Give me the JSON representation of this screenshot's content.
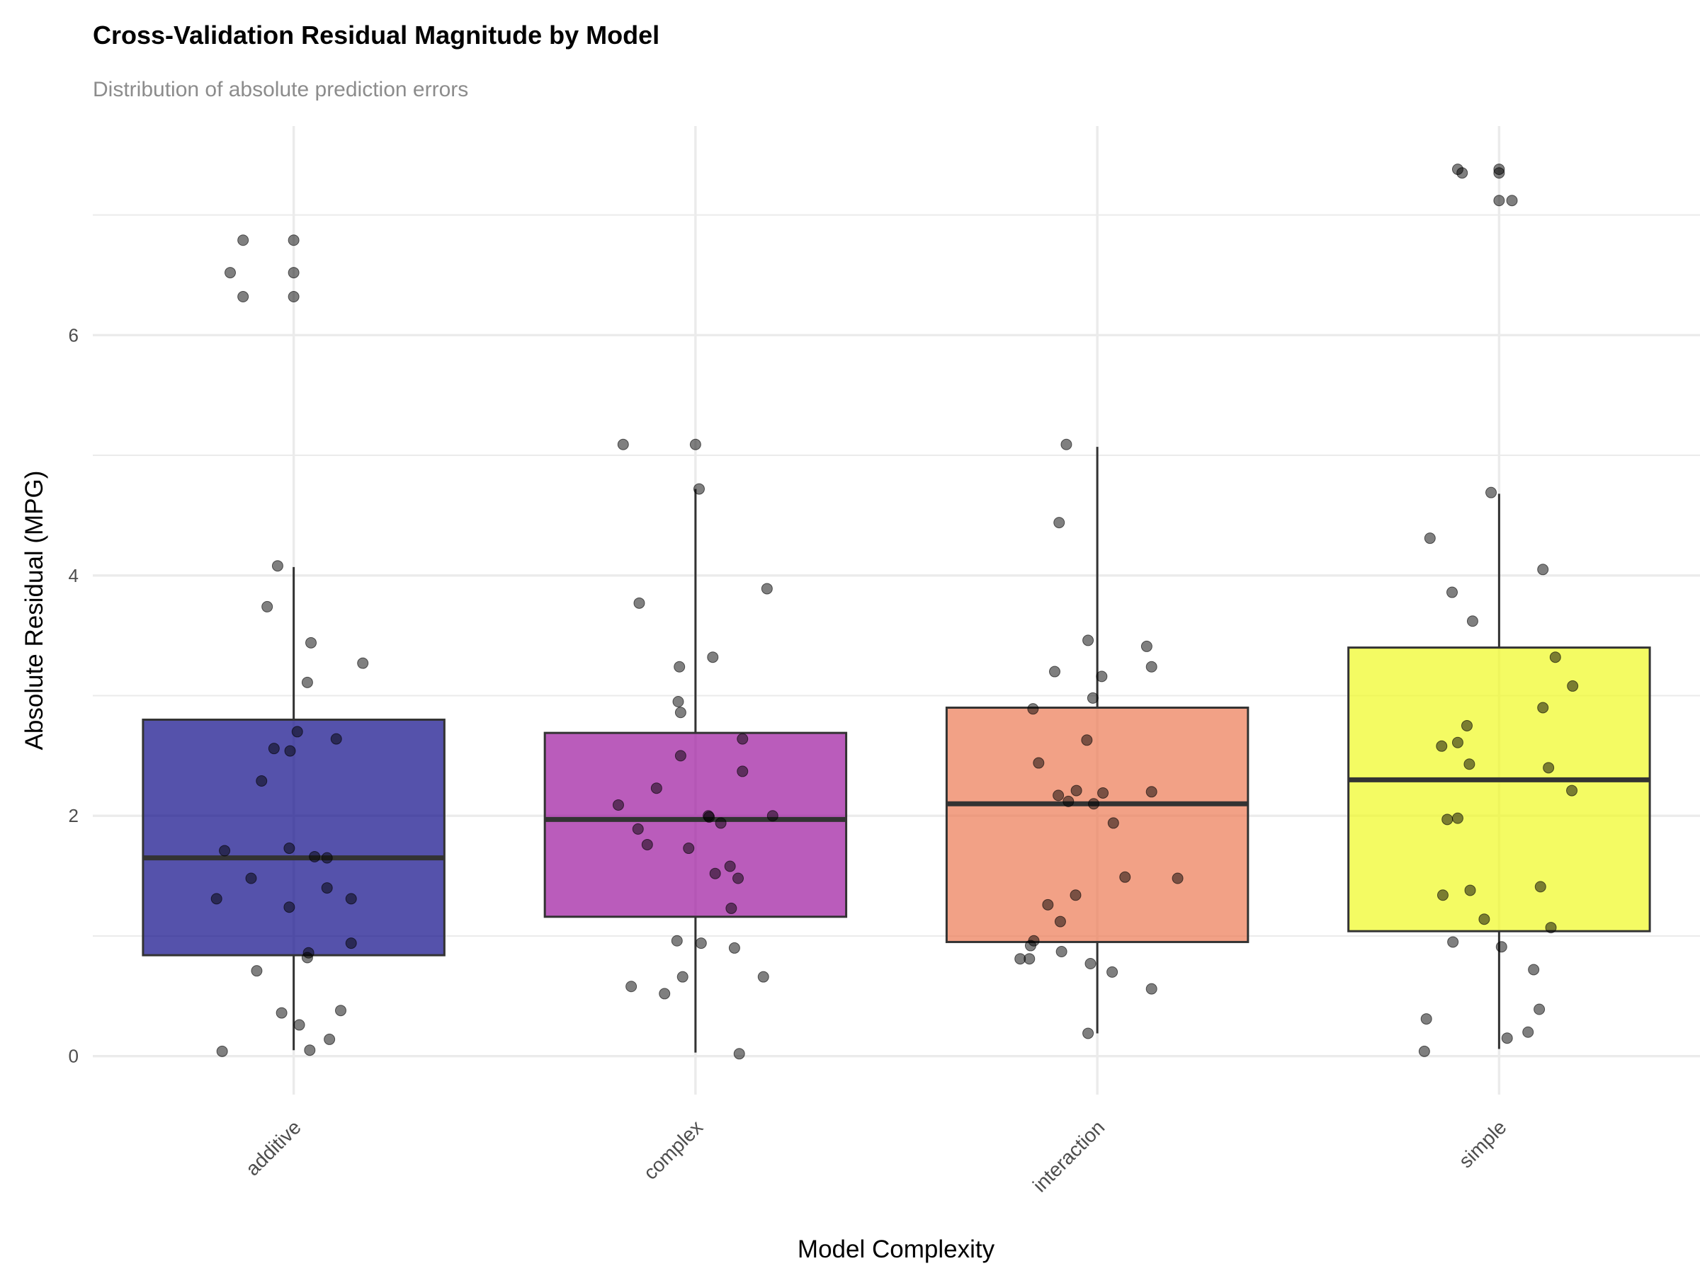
{
  "chart_data": {
    "type": "box",
    "title": "Cross-Validation Residual Magnitude by Model",
    "subtitle": "Distribution of absolute prediction errors",
    "xlabel": "Model Complexity",
    "ylabel": "Absolute Residual (MPG)",
    "ylim": [
      -0.32,
      7.74
    ],
    "yticks": [
      0,
      2,
      4,
      6
    ],
    "grid": true,
    "legend": "none",
    "categories": [
      "additive",
      "complex",
      "interaction",
      "simple"
    ],
    "colors": [
      "#0d0887",
      "#9c179e",
      "#ed7953",
      "#f0f921"
    ],
    "box_opacity": 0.7,
    "boxes": [
      {
        "category": "additive",
        "lower": 0.05,
        "q1": 0.84,
        "median": 1.65,
        "q3": 2.8,
        "upper": 4.07
      },
      {
        "category": "complex",
        "lower": 0.03,
        "q1": 1.16,
        "median": 1.97,
        "q3": 2.69,
        "upper": 4.72
      },
      {
        "category": "interaction",
        "lower": 0.19,
        "q1": 0.95,
        "median": 2.1,
        "q3": 2.9,
        "upper": 5.07
      },
      {
        "category": "simple",
        "lower": 0.06,
        "q1": 1.04,
        "median": 2.3,
        "q3": 3.4,
        "upper": 4.68
      }
    ],
    "points": {
      "additive": [
        [
          -0.126,
          6.79
        ],
        [
          0,
          6.79
        ],
        [
          -0.158,
          6.52
        ],
        [
          0,
          6.52
        ],
        [
          -0.126,
          6.32
        ],
        [
          0,
          6.32
        ],
        [
          -0.04,
          4.08
        ],
        [
          -0.066,
          3.74
        ],
        [
          0.043,
          3.44
        ],
        [
          0.172,
          3.27
        ],
        [
          0.034,
          3.11
        ],
        [
          0.009,
          2.7
        ],
        [
          0.106,
          2.64
        ],
        [
          -0.049,
          2.56
        ],
        [
          -0.009,
          2.54
        ],
        [
          -0.08,
          2.29
        ],
        [
          -0.172,
          1.71
        ],
        [
          -0.011,
          1.73
        ],
        [
          0.052,
          1.66
        ],
        [
          0.083,
          1.65
        ],
        [
          -0.106,
          1.48
        ],
        [
          0.083,
          1.4
        ],
        [
          -0.192,
          1.31
        ],
        [
          0.143,
          1.31
        ],
        [
          -0.011,
          1.24
        ],
        [
          0.143,
          0.94
        ],
        [
          0.037,
          0.86
        ],
        [
          0.034,
          0.82
        ],
        [
          -0.092,
          0.71
        ],
        [
          -0.03,
          0.36
        ],
        [
          0.117,
          0.38
        ],
        [
          0.014,
          0.26
        ],
        [
          0.089,
          0.14
        ],
        [
          0.04,
          0.05
        ],
        [
          -0.178,
          0.04
        ]
      ],
      "complex": [
        [
          -0.18,
          5.09
        ],
        [
          0,
          5.09
        ],
        [
          0.009,
          4.72
        ],
        [
          0.178,
          3.89
        ],
        [
          -0.14,
          3.77
        ],
        [
          0.043,
          3.32
        ],
        [
          -0.04,
          3.24
        ],
        [
          -0.043,
          2.95
        ],
        [
          -0.037,
          2.86
        ],
        [
          0.117,
          2.64
        ],
        [
          -0.037,
          2.5
        ],
        [
          0.117,
          2.37
        ],
        [
          -0.097,
          2.23
        ],
        [
          -0.192,
          2.09
        ],
        [
          0.032,
          2.0
        ],
        [
          0.192,
          2.0
        ],
        [
          0.034,
          1.99
        ],
        [
          0.063,
          1.94
        ],
        [
          -0.143,
          1.89
        ],
        [
          -0.12,
          1.76
        ],
        [
          -0.017,
          1.73
        ],
        [
          0.086,
          1.58
        ],
        [
          0.049,
          1.52
        ],
        [
          0.106,
          1.48
        ],
        [
          0.089,
          1.23
        ],
        [
          -0.046,
          0.96
        ],
        [
          0.014,
          0.94
        ],
        [
          0.097,
          0.9
        ],
        [
          0.169,
          0.66
        ],
        [
          -0.032,
          0.66
        ],
        [
          -0.16,
          0.58
        ],
        [
          -0.077,
          0.52
        ],
        [
          0.109,
          0.02
        ]
      ],
      "interaction": [
        [
          -0.077,
          5.09
        ],
        [
          -0.095,
          4.44
        ],
        [
          -0.023,
          3.46
        ],
        [
          0.123,
          3.41
        ],
        [
          0.135,
          3.24
        ],
        [
          -0.106,
          3.2
        ],
        [
          0.011,
          3.16
        ],
        [
          -0.011,
          2.98
        ],
        [
          -0.16,
          2.89
        ],
        [
          -0.026,
          2.63
        ],
        [
          -0.146,
          2.44
        ],
        [
          -0.052,
          2.21
        ],
        [
          0.014,
          2.19
        ],
        [
          0.135,
          2.2
        ],
        [
          -0.097,
          2.17
        ],
        [
          -0.072,
          2.12
        ],
        [
          -0.009,
          2.1
        ],
        [
          0.04,
          1.94
        ],
        [
          0.069,
          1.49
        ],
        [
          0.2,
          1.48
        ],
        [
          -0.054,
          1.34
        ],
        [
          -0.123,
          1.26
        ],
        [
          -0.092,
          1.12
        ],
        [
          -0.158,
          0.96
        ],
        [
          -0.166,
          0.92
        ],
        [
          -0.089,
          0.87
        ],
        [
          -0.192,
          0.81
        ],
        [
          -0.169,
          0.81
        ],
        [
          -0.017,
          0.77
        ],
        [
          0.037,
          0.7
        ],
        [
          0.135,
          0.56
        ],
        [
          -0.023,
          0.19
        ]
      ],
      "simple": [
        [
          -0.103,
          7.38
        ],
        [
          0,
          7.38
        ],
        [
          -0.092,
          7.35
        ],
        [
          0,
          7.35
        ],
        [
          0,
          7.12
        ],
        [
          0.032,
          7.12
        ],
        [
          -0.02,
          4.69
        ],
        [
          -0.172,
          4.31
        ],
        [
          0.109,
          4.05
        ],
        [
          -0.117,
          3.86
        ],
        [
          -0.066,
          3.62
        ],
        [
          0.14,
          3.32
        ],
        [
          0.183,
          3.08
        ],
        [
          0.109,
          2.9
        ],
        [
          -0.08,
          2.75
        ],
        [
          -0.103,
          2.61
        ],
        [
          -0.143,
          2.58
        ],
        [
          -0.074,
          2.43
        ],
        [
          0.123,
          2.4
        ],
        [
          0.181,
          2.21
        ],
        [
          -0.103,
          1.98
        ],
        [
          -0.129,
          1.97
        ],
        [
          0.103,
          1.41
        ],
        [
          -0.072,
          1.38
        ],
        [
          -0.14,
          1.34
        ],
        [
          -0.037,
          1.14
        ],
        [
          0.129,
          1.07
        ],
        [
          -0.115,
          0.95
        ],
        [
          0.006,
          0.91
        ],
        [
          0.086,
          0.72
        ],
        [
          0.1,
          0.39
        ],
        [
          -0.181,
          0.31
        ],
        [
          0.072,
          0.2
        ],
        [
          0.02,
          0.15
        ],
        [
          -0.186,
          0.04
        ]
      ]
    }
  }
}
